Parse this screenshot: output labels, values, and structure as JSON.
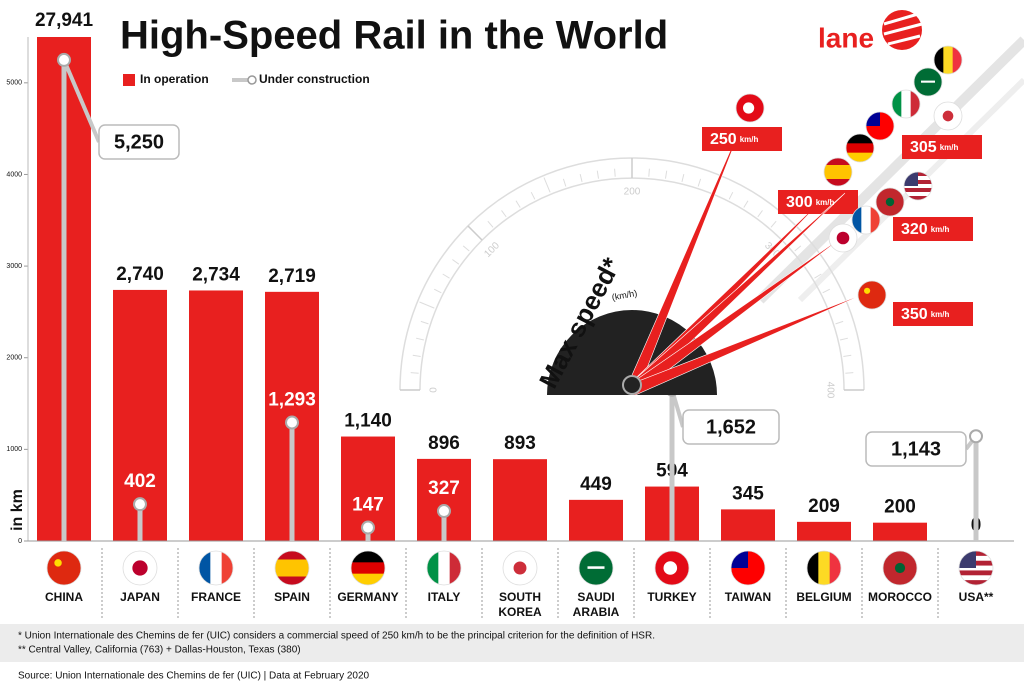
{
  "chart_data": [
    {
      "type": "bar",
      "title": "High-Speed Rail in the World",
      "y_label": "in km",
      "categories": [
        "CHINA",
        "JAPAN",
        "FRANCE",
        "SPAIN",
        "GERMANY",
        "ITALY",
        "SOUTH KOREA",
        "SAUDI ARABIA",
        "TURKEY",
        "TAIWAN",
        "BELGIUM",
        "MOROCCO",
        "USA**"
      ],
      "series": [
        {
          "name": "In operation",
          "color": "#e8201f",
          "values": [
            27941,
            2740,
            2734,
            2719,
            1140,
            896,
            893,
            449,
            594,
            345,
            209,
            200,
            0
          ],
          "value_labels": [
            "27,941",
            "2,740",
            "2,734",
            "2,719",
            "1,140",
            "896",
            "893",
            "449",
            "594",
            "345",
            "209",
            "200",
            "0"
          ]
        },
        {
          "name": "Under construction",
          "color": "#c8c8c8",
          "values": [
            5250,
            402,
            null,
            1293,
            147,
            327,
            null,
            null,
            1652,
            null,
            null,
            null,
            1143
          ],
          "value_labels": [
            "5,250",
            "402",
            null,
            "1,293",
            "147",
            "327",
            null,
            null,
            "1,652",
            null,
            null,
            null,
            "1,143"
          ]
        }
      ],
      "ylim": [
        0,
        5500
      ],
      "yticks": [
        0,
        1000,
        2000,
        3000,
        4000,
        5000
      ]
    },
    {
      "type": "gauge",
      "title": "Max speed*",
      "unit": "(km/h)",
      "value_unit": "km/h",
      "values": [
        250,
        300,
        305,
        320,
        350
      ],
      "color": "#e8201f",
      "ylim": [
        0,
        400
      ],
      "yticks": [
        0,
        100,
        200,
        300,
        400
      ]
    }
  ],
  "brand": "lane",
  "footnotes": [
    "* Union Internationale des Chemins de fer (UIC) considers a commercial speed of 250 km/h to be the principal criterion for the definition of HSR.",
    "** Central Valley, California (763) + Dallas-Houston, Texas (380)"
  ],
  "source": "Source: Union Internationale des Chemins de fer (UIC)  |  Data at February 2020"
}
